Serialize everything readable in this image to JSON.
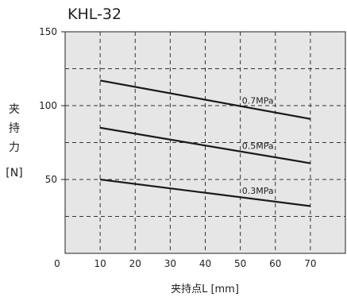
{
  "chart_data": {
    "type": "line",
    "title": "KHL-32",
    "xlabel": "夹持点L [mm]",
    "ylabel_chars": [
      "夹",
      "持",
      "力"
    ],
    "ylabel_unit": "[N]",
    "x_ticks": [
      "10",
      "20",
      "30",
      "40",
      "50",
      "60",
      "70"
    ],
    "y_ticks": [
      "50",
      "100",
      "150"
    ],
    "origin_label": "0",
    "xlim": [
      0,
      80
    ],
    "ylim": [
      0,
      150
    ],
    "grid": true,
    "grid_style": "dashed",
    "plot_background": "#e6e6e6",
    "line_color": "#1a1a1a",
    "series": [
      {
        "name": "0.7MPa",
        "x": [
          10,
          70
        ],
        "y": [
          117,
          91
        ]
      },
      {
        "name": "0.5MPa",
        "x": [
          10,
          70
        ],
        "y": [
          85,
          61
        ]
      },
      {
        "name": "0.3MPa",
        "x": [
          10,
          70
        ],
        "y": [
          50,
          32
        ]
      }
    ]
  }
}
